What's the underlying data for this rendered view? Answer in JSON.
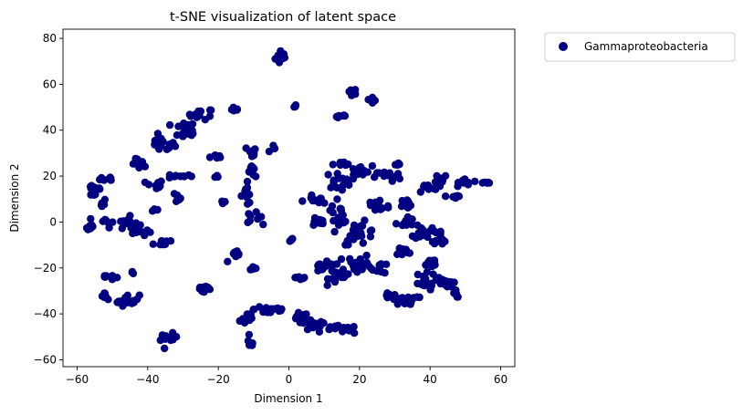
{
  "chart_data": {
    "type": "scatter",
    "title": "t-SNE visualization of latent space",
    "xlabel": "Dimension 1",
    "ylabel": "Dimension 2",
    "xlim": [
      -64,
      64
    ],
    "ylim": [
      -63,
      84
    ],
    "xticks": [
      -60,
      -40,
      -20,
      0,
      20,
      40,
      60
    ],
    "yticks": [
      -60,
      -40,
      -20,
      0,
      20,
      40,
      60,
      80
    ],
    "xtick_labels": [
      "−60",
      "−40",
      "−20",
      "0",
      "20",
      "40",
      "60"
    ],
    "ytick_labels": [
      "−60",
      "−40",
      "−20",
      "0",
      "20",
      "40",
      "60",
      "80"
    ],
    "grid": false,
    "legend": {
      "placement": "outside-top-right"
    },
    "series": [
      {
        "name": "Gammaproteobacteria",
        "color": "#000080",
        "clusters": [
          {
            "cx": -2,
            "cy": 72,
            "sx": 1.5,
            "sy": 3,
            "n": 12
          },
          {
            "cx": 1.5,
            "cy": 50.5,
            "sx": 0.6,
            "sy": 0.6,
            "n": 3
          },
          {
            "cx": 18,
            "cy": 57,
            "sx": 1.2,
            "sy": 1.2,
            "n": 6
          },
          {
            "cx": 24,
            "cy": 53,
            "sx": 1.5,
            "sy": 1,
            "n": 6
          },
          {
            "cx": 15,
            "cy": 46,
            "sx": 1.5,
            "sy": 0.6,
            "n": 6
          },
          {
            "cx": -15,
            "cy": 49,
            "sx": 1,
            "sy": 1,
            "n": 6
          },
          {
            "cx": -25,
            "cy": 47,
            "sx": 3,
            "sy": 2,
            "n": 14
          },
          {
            "cx": -30,
            "cy": 40,
            "sx": 3,
            "sy": 3,
            "n": 14
          },
          {
            "cx": -36,
            "cy": 34,
            "sx": 3,
            "sy": 3,
            "n": 18
          },
          {
            "cx": -29,
            "cy": 38,
            "sx": 2,
            "sy": 1,
            "n": 6
          },
          {
            "cx": -42,
            "cy": 25,
            "sx": 2,
            "sy": 2,
            "n": 10
          },
          {
            "cx": -21,
            "cy": 28.5,
            "sx": 2,
            "sy": 0.7,
            "n": 5
          },
          {
            "cx": -20,
            "cy": 20,
            "sx": 0.8,
            "sy": 0.5,
            "n": 3
          },
          {
            "cx": -31,
            "cy": 20,
            "sx": 3,
            "sy": 0.8,
            "n": 10
          },
          {
            "cx": -38,
            "cy": 16,
            "sx": 2,
            "sy": 2,
            "n": 10
          },
          {
            "cx": -32,
            "cy": 11,
            "sx": 2,
            "sy": 2,
            "n": 8
          },
          {
            "cx": -38,
            "cy": 5,
            "sx": 1,
            "sy": 1,
            "n": 4
          },
          {
            "cx": -55,
            "cy": 14,
            "sx": 2,
            "sy": 3,
            "n": 16
          },
          {
            "cx": -51,
            "cy": 19,
            "sx": 2,
            "sy": 1,
            "n": 8
          },
          {
            "cx": -53,
            "cy": 8,
            "sx": 1,
            "sy": 2,
            "n": 6
          },
          {
            "cx": -52,
            "cy": 0,
            "sx": 2,
            "sy": 2,
            "n": 8
          },
          {
            "cx": -56,
            "cy": -2,
            "sx": 1.5,
            "sy": 1,
            "n": 6
          },
          {
            "cx": -46,
            "cy": 0,
            "sx": 2,
            "sy": 2,
            "n": 14
          },
          {
            "cx": -42,
            "cy": -4,
            "sx": 2.5,
            "sy": 2,
            "n": 12
          },
          {
            "cx": -36,
            "cy": -9,
            "sx": 2,
            "sy": 1.5,
            "n": 10
          },
          {
            "cx": -52,
            "cy": -24,
            "sx": 2,
            "sy": 1,
            "n": 8
          },
          {
            "cx": -44,
            "cy": -22,
            "sx": 0.8,
            "sy": 0.8,
            "n": 3
          },
          {
            "cx": -46,
            "cy": -34,
            "sx": 3,
            "sy": 2,
            "n": 18
          },
          {
            "cx": -52,
            "cy": -32,
            "sx": 1,
            "sy": 1,
            "n": 6
          },
          {
            "cx": -34,
            "cy": -51,
            "sx": 2,
            "sy": 2,
            "n": 10
          },
          {
            "cx": -24,
            "cy": -29,
            "sx": 2,
            "sy": 2,
            "n": 12
          },
          {
            "cx": -10,
            "cy": 31,
            "sx": 2,
            "sy": 1.5,
            "n": 8
          },
          {
            "cx": -5,
            "cy": 32,
            "sx": 1,
            "sy": 1,
            "n": 4
          },
          {
            "cx": -10,
            "cy": 22,
            "sx": 1.5,
            "sy": 2,
            "n": 7
          },
          {
            "cx": -12,
            "cy": 12,
            "sx": 1.5,
            "sy": 4,
            "n": 12
          },
          {
            "cx": -19,
            "cy": 9,
            "sx": 0.8,
            "sy": 0.8,
            "n": 3
          },
          {
            "cx": -10,
            "cy": 2,
            "sx": 2,
            "sy": 2,
            "n": 8
          },
          {
            "cx": -15,
            "cy": -15,
            "sx": 2,
            "sy": 2,
            "n": 10
          },
          {
            "cx": -10,
            "cy": -20,
            "sx": 1,
            "sy": 1,
            "n": 4
          },
          {
            "cx": -12,
            "cy": -42,
            "sx": 2,
            "sy": 3,
            "n": 12
          },
          {
            "cx": -5,
            "cy": -38,
            "sx": 4,
            "sy": 2,
            "n": 18
          },
          {
            "cx": -11,
            "cy": -53,
            "sx": 1,
            "sy": 2,
            "n": 6
          },
          {
            "cx": 1,
            "cy": -8,
            "sx": 1,
            "sy": 1,
            "n": 4
          },
          {
            "cx": 3,
            "cy": -42,
            "sx": 2,
            "sy": 2,
            "n": 12
          },
          {
            "cx": 7,
            "cy": -45,
            "sx": 3,
            "sy": 2,
            "n": 16
          },
          {
            "cx": 15,
            "cy": -47,
            "sx": 4,
            "sy": 1.5,
            "n": 18
          },
          {
            "cx": 3,
            "cy": -24,
            "sx": 2,
            "sy": 1,
            "n": 6
          },
          {
            "cx": 10,
            "cy": -20,
            "sx": 4,
            "sy": 2,
            "n": 16
          },
          {
            "cx": 15,
            "cy": -23,
            "sx": 3,
            "sy": 3,
            "n": 20
          },
          {
            "cx": 20,
            "cy": -18,
            "sx": 3,
            "sy": 3,
            "n": 18
          },
          {
            "cx": 26,
            "cy": -20,
            "sx": 2,
            "sy": 2,
            "n": 10
          },
          {
            "cx": 20,
            "cy": -5,
            "sx": 4,
            "sy": 4,
            "n": 22
          },
          {
            "cx": 14,
            "cy": 3,
            "sx": 3,
            "sy": 3,
            "n": 16
          },
          {
            "cx": 8,
            "cy": 9,
            "sx": 3,
            "sy": 2,
            "n": 14
          },
          {
            "cx": 8,
            "cy": 0,
            "sx": 2,
            "sy": 2,
            "n": 10
          },
          {
            "cx": 14,
            "cy": 18,
            "sx": 3,
            "sy": 3,
            "n": 16
          },
          {
            "cx": 20,
            "cy": 22,
            "sx": 3,
            "sy": 2,
            "n": 16
          },
          {
            "cx": 15,
            "cy": 25,
            "sx": 2,
            "sy": 1,
            "n": 8
          },
          {
            "cx": 28,
            "cy": 20,
            "sx": 3,
            "sy": 2,
            "n": 14
          },
          {
            "cx": 31,
            "cy": 25,
            "sx": 1.5,
            "sy": 1,
            "n": 6
          },
          {
            "cx": 25,
            "cy": 7,
            "sx": 3,
            "sy": 3,
            "n": 18
          },
          {
            "cx": 34,
            "cy": 8,
            "sx": 2,
            "sy": 2,
            "n": 10
          },
          {
            "cx": 39,
            "cy": 15,
            "sx": 2,
            "sy": 2,
            "n": 10
          },
          {
            "cx": 43,
            "cy": 19,
            "sx": 2,
            "sy": 2,
            "n": 12
          },
          {
            "cx": 50,
            "cy": 17,
            "sx": 3,
            "sy": 1.5,
            "n": 14
          },
          {
            "cx": 56,
            "cy": 17,
            "sx": 1,
            "sy": 0.7,
            "n": 5
          },
          {
            "cx": 47,
            "cy": 11,
            "sx": 1.5,
            "sy": 1.5,
            "n": 6
          },
          {
            "cx": 33,
            "cy": 0,
            "sx": 2,
            "sy": 2,
            "n": 12
          },
          {
            "cx": 38,
            "cy": -4,
            "sx": 2,
            "sy": 3,
            "n": 14
          },
          {
            "cx": 43,
            "cy": -6,
            "sx": 2,
            "sy": 3,
            "n": 14
          },
          {
            "cx": 32,
            "cy": -13,
            "sx": 2,
            "sy": 2,
            "n": 10
          },
          {
            "cx": 40,
            "cy": -18,
            "sx": 2,
            "sy": 2,
            "n": 12
          },
          {
            "cx": 38,
            "cy": -26,
            "sx": 3,
            "sy": 3,
            "n": 18
          },
          {
            "cx": 44,
            "cy": -27,
            "sx": 2,
            "sy": 3,
            "n": 12
          },
          {
            "cx": 47,
            "cy": -31,
            "sx": 1,
            "sy": 1.5,
            "n": 6
          },
          {
            "cx": 33,
            "cy": -34,
            "sx": 3,
            "sy": 2,
            "n": 16
          },
          {
            "cx": 28,
            "cy": -32,
            "sx": 1,
            "sy": 1,
            "n": 4
          }
        ]
      }
    ]
  }
}
